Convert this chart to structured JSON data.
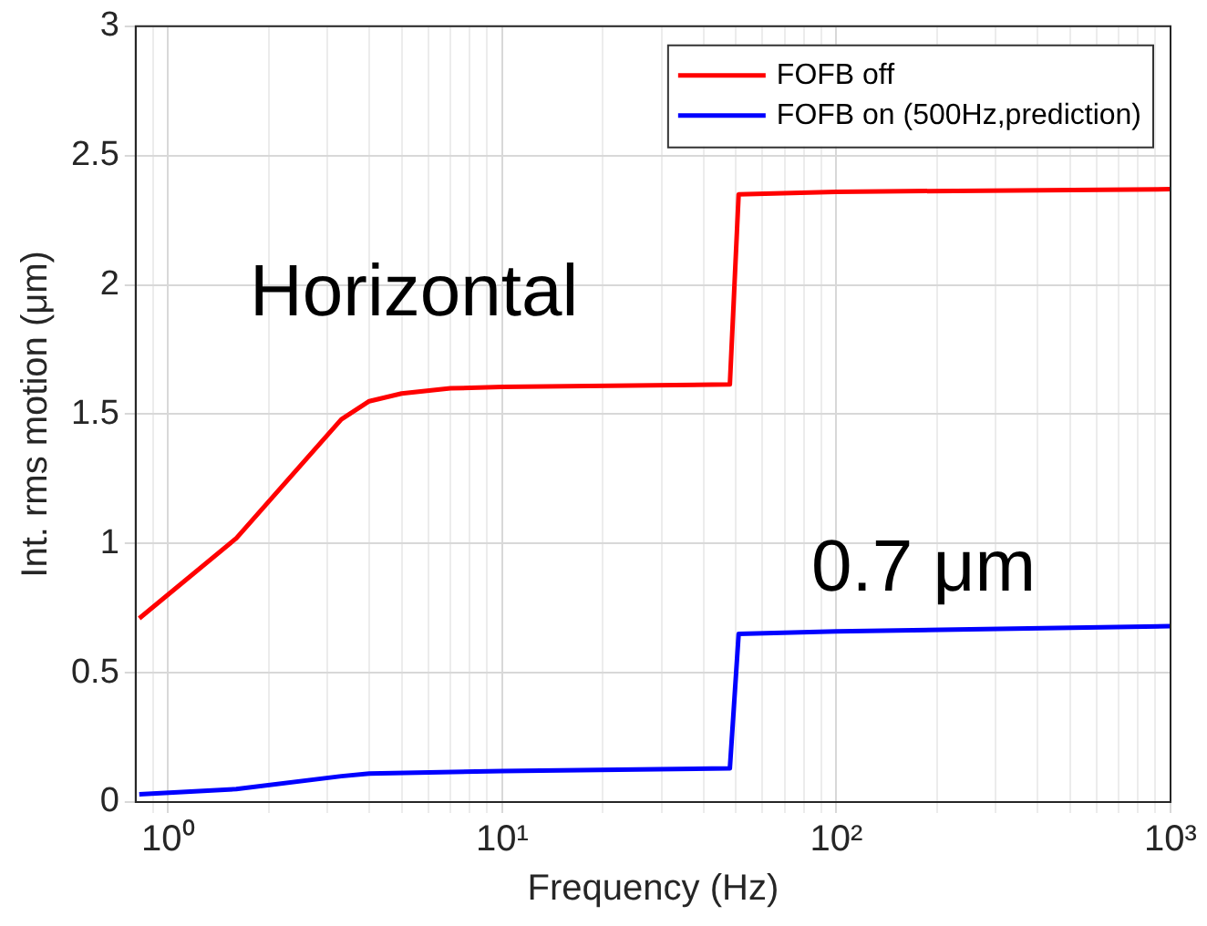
{
  "chart_data": {
    "type": "line",
    "xlabel": "Frequency (Hz)",
    "ylabel": "Int. rms motion (μm)",
    "annotations": [
      "Horizontal",
      "0.7 μm"
    ],
    "series": [
      {
        "name": "FOFB off",
        "color": "#ff0000",
        "x": [
          0.82,
          1.6,
          3.3,
          4,
          5,
          7,
          10,
          48,
          51,
          100,
          1000
        ],
        "values": [
          0.71,
          1.02,
          1.48,
          1.55,
          1.58,
          1.6,
          1.605,
          1.615,
          2.35,
          2.36,
          2.37
        ]
      },
      {
        "name": "FOFB on (500Hz,prediction)",
        "color": "#0000ff",
        "x": [
          0.82,
          1.6,
          3.3,
          4,
          10,
          48,
          51,
          100,
          1000
        ],
        "values": [
          0.03,
          0.05,
          0.1,
          0.11,
          0.12,
          0.13,
          0.65,
          0.66,
          0.68
        ]
      }
    ],
    "log": "x",
    "xlim": [
      0.8,
      1000
    ],
    "ylim": [
      0,
      3
    ],
    "xticks": [
      {
        "value": 0.9,
        "label": null
      },
      {
        "value": 1,
        "label": "10⁰"
      },
      {
        "value": 2,
        "label": null
      },
      {
        "value": 3,
        "label": null
      },
      {
        "value": 4,
        "label": null
      },
      {
        "value": 5,
        "label": null
      },
      {
        "value": 6,
        "label": null
      },
      {
        "value": 7,
        "label": null
      },
      {
        "value": 8,
        "label": null
      },
      {
        "value": 9,
        "label": null
      },
      {
        "value": 10,
        "label": "10¹"
      },
      {
        "value": 20,
        "label": null
      },
      {
        "value": 30,
        "label": null
      },
      {
        "value": 40,
        "label": null
      },
      {
        "value": 50,
        "label": null
      },
      {
        "value": 60,
        "label": null
      },
      {
        "value": 70,
        "label": null
      },
      {
        "value": 80,
        "label": null
      },
      {
        "value": 90,
        "label": null
      },
      {
        "value": 100,
        "label": "10²"
      },
      {
        "value": 200,
        "label": null
      },
      {
        "value": 300,
        "label": null
      },
      {
        "value": 400,
        "label": null
      },
      {
        "value": 500,
        "label": null
      },
      {
        "value": 600,
        "label": null
      },
      {
        "value": 700,
        "label": null
      },
      {
        "value": 800,
        "label": null
      },
      {
        "value": 900,
        "label": null
      },
      {
        "value": 1000,
        "label": "10³"
      }
    ],
    "yticks": [
      0,
      0.5,
      1,
      1.5,
      2,
      2.5,
      3
    ],
    "grid": true,
    "legend": "top right",
    "marker": "none",
    "line_style": "solid"
  }
}
